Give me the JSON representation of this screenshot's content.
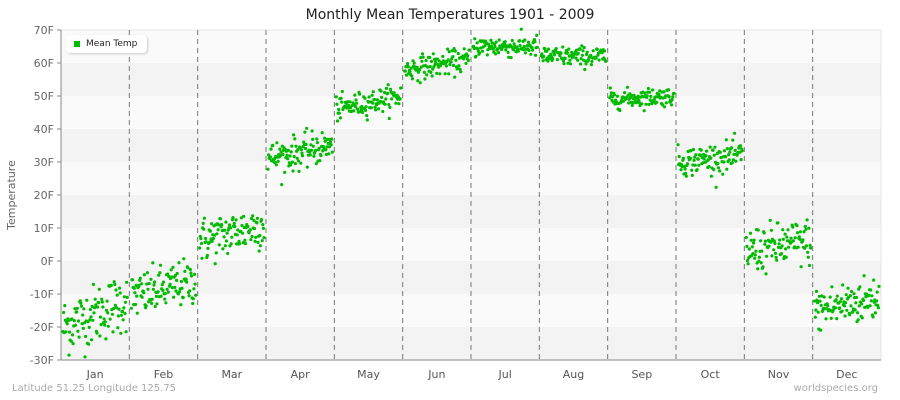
{
  "title": "Monthly Mean Temperatures 1901 - 2009",
  "footer": {
    "location": "Latitude 51.25 Longitude 125.75",
    "source": "worldspecies.org"
  },
  "legend": {
    "label": "Mean Temp"
  },
  "colors": {
    "point": "#00bb00",
    "band_light": "#fafafa",
    "band_dark": "#f3f3f3",
    "axis": "#888888",
    "divider": "#777777"
  },
  "chart_data": {
    "type": "scatter",
    "title": "Monthly Mean Temperatures 1901 - 2009",
    "xlabel": "",
    "ylabel": "Temperature",
    "ylim": [
      -30,
      70
    ],
    "yticks": [
      "-30F",
      "-20F",
      "-10F",
      "0F",
      "10F",
      "20F",
      "30F",
      "40F",
      "50F",
      "60F",
      "70F"
    ],
    "categories": [
      "Jan",
      "Feb",
      "Mar",
      "Apr",
      "May",
      "Jun",
      "Jul",
      "Aug",
      "Sep",
      "Oct",
      "Nov",
      "Dec"
    ],
    "series": [
      {
        "name": "Mean Temp",
        "years": "1901-2009",
        "monthly": [
          {
            "month": "Jan",
            "start": -20,
            "end": -12,
            "spread": 4.5
          },
          {
            "month": "Feb",
            "start": -11,
            "end": -6,
            "spread": 3.5
          },
          {
            "month": "Mar",
            "start": 6,
            "end": 11,
            "spread": 3.5
          },
          {
            "month": "Apr",
            "start": 31,
            "end": 35,
            "spread": 2.5
          },
          {
            "month": "May",
            "start": 46,
            "end": 50,
            "spread": 1.8
          },
          {
            "month": "Jun",
            "start": 58,
            "end": 61,
            "spread": 1.8
          },
          {
            "month": "Jul",
            "start": 65,
            "end": 65,
            "spread": 1.6
          },
          {
            "month": "Aug",
            "start": 62,
            "end": 62,
            "spread": 1.5
          },
          {
            "month": "Sep",
            "start": 49,
            "end": 50,
            "spread": 1.4
          },
          {
            "month": "Oct",
            "start": 30,
            "end": 32,
            "spread": 2.2
          },
          {
            "month": "Nov",
            "start": 3,
            "end": 6,
            "spread": 3.5
          },
          {
            "month": "Dec",
            "start": -15,
            "end": -11,
            "spread": 3.5
          }
        ]
      }
    ],
    "grid": "horizontal bands, vertical dashed month dividers",
    "legend_position": "top-left"
  }
}
